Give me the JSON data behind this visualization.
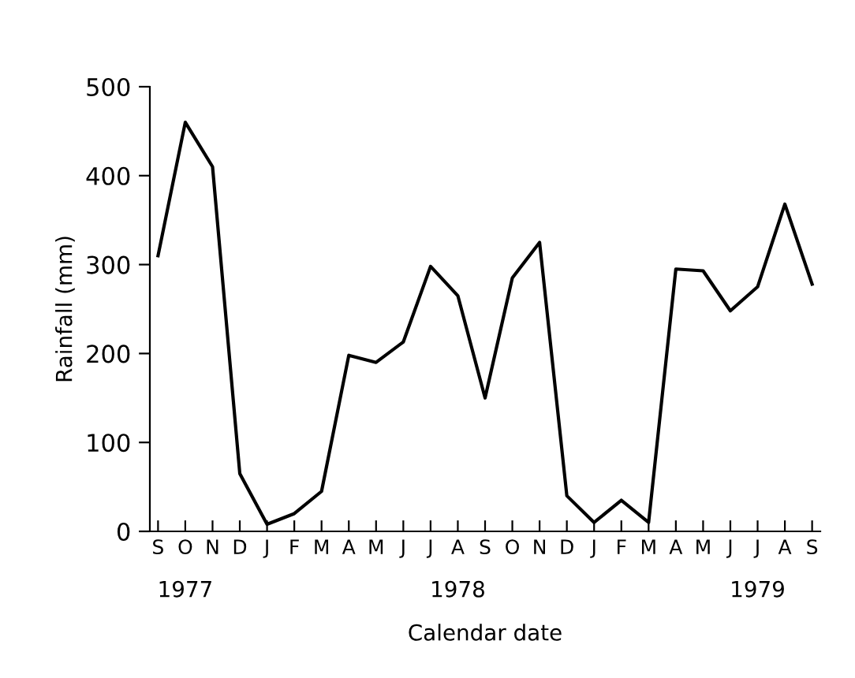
{
  "chart_data": {
    "type": "line",
    "categories": [
      "S",
      "O",
      "N",
      "D",
      "J",
      "F",
      "M",
      "A",
      "M",
      "J",
      "J",
      "A",
      "S",
      "O",
      "N",
      "D",
      "J",
      "F",
      "M",
      "A",
      "M",
      "J",
      "J",
      "A",
      "S"
    ],
    "values": [
      310,
      460,
      410,
      65,
      8,
      20,
      45,
      198,
      190,
      213,
      298,
      265,
      150,
      285,
      325,
      40,
      10,
      35,
      10,
      295,
      293,
      248,
      275,
      368,
      278
    ],
    "color": "#000000",
    "ylabel": "Rainfall (mm)",
    "xlabel": "Calendar date",
    "annotations": [
      "1977",
      "1978",
      "1979"
    ],
    "ylim": [
      0,
      500
    ],
    "yticks": [
      0,
      100,
      200,
      300,
      400,
      500
    ],
    "grid": false,
    "marker": "none",
    "line_style": "solid"
  }
}
